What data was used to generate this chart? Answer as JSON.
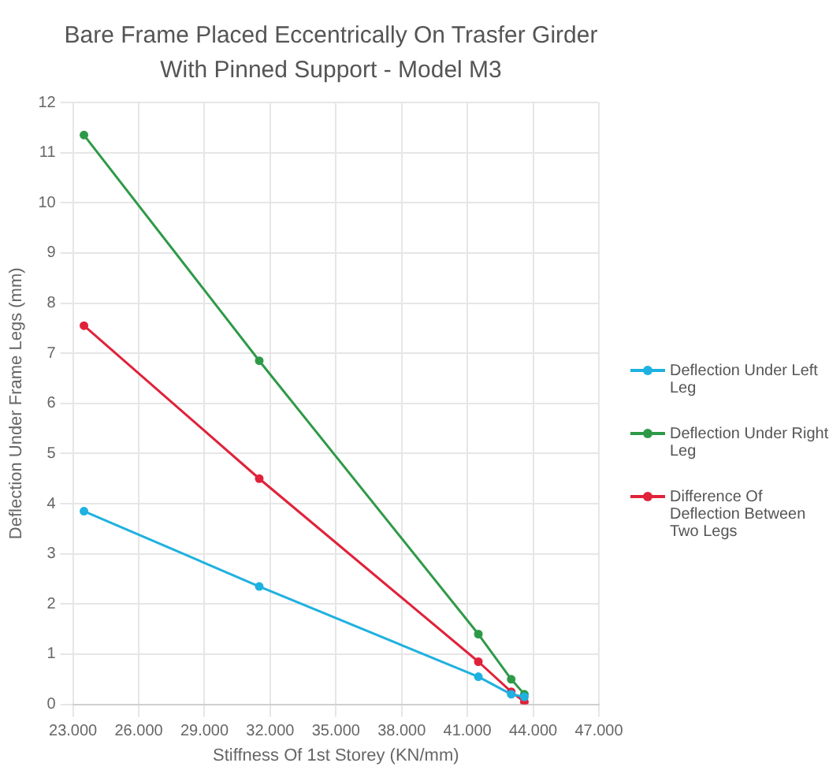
{
  "chart_data": {
    "type": "line",
    "title": "Bare Frame Placed Eccentrically On Trasfer Girder\nWith Pinned Support - Model M3",
    "xlabel": "Stiffness Of 1st Storey (KN/mm)",
    "ylabel": "Deflection Under Frame Legs (mm)",
    "x": [
      23500,
      31500,
      41500,
      43000,
      43600
    ],
    "series": [
      {
        "name": "Deflection Under Left Leg",
        "color": "#1fb1e0",
        "values": [
          3.85,
          2.35,
          0.55,
          0.2,
          0.15
        ]
      },
      {
        "name": "Deflection Under Right Leg",
        "color": "#2e9a48",
        "values": [
          11.35,
          6.85,
          1.4,
          0.5,
          0.2
        ]
      },
      {
        "name": "Difference Of Deflection Between Two Legs",
        "color": "#e0223a",
        "values": [
          7.55,
          4.5,
          0.85,
          0.25,
          0.05
        ]
      }
    ],
    "xlim": [
      23000,
      47000
    ],
    "xticks": [
      {
        "value": 23000,
        "label": "23.000"
      },
      {
        "value": 26000,
        "label": "26.000"
      },
      {
        "value": 29000,
        "label": "29.000"
      },
      {
        "value": 32000,
        "label": "32.000"
      },
      {
        "value": 35000,
        "label": "35.000"
      },
      {
        "value": 38000,
        "label": "38.000"
      },
      {
        "value": 41000,
        "label": "41.000"
      },
      {
        "value": 44000,
        "label": "44.000"
      },
      {
        "value": 47000,
        "label": "47.000"
      }
    ],
    "ylim": [
      0,
      12
    ],
    "yticks": [
      0,
      1,
      2,
      3,
      4,
      5,
      6,
      7,
      8,
      9,
      10,
      11,
      12
    ],
    "grid": true,
    "legend": "right",
    "marker": "circle",
    "line_style": "solid"
  }
}
